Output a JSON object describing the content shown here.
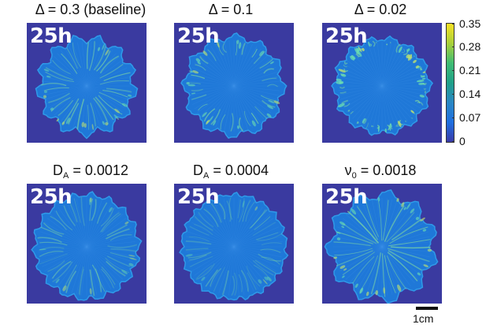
{
  "panels": [
    {
      "title": "Δ = 0.3 (baseline)",
      "time": "25h",
      "variant": "baseline"
    },
    {
      "title": "Δ = 0.1",
      "time": "25h",
      "variant": "mid"
    },
    {
      "title": "Δ = 0.02",
      "time": "25h",
      "variant": "small"
    },
    {
      "title_main": "D",
      "title_sub": "A",
      "title_rest": "= 0.0012",
      "time": "",
      "variant": "da1"
    },
    {
      "title_main": "D",
      "title_sub": "A",
      "title_rest": "= 0.0004",
      "time": "",
      "variant": "da2"
    },
    {
      "title_main": "ν",
      "title_sub": "0",
      "title_rest": "= 0.0018",
      "time": "",
      "variant": "nu"
    }
  ],
  "bottom_time_labels": [
    "25h",
    "25h",
    "25h"
  ],
  "colorbar": {
    "ticks": [
      "0.35",
      "0.28",
      "0.21",
      "0.14",
      "0.07",
      "0"
    ],
    "colors": [
      "#f7e225",
      "#a9d03a",
      "#3fbc73",
      "#1fa088",
      "#2a87c4",
      "#1f6fe0",
      "#3a3aa8"
    ]
  },
  "scalebar": {
    "label": "1cm"
  },
  "colors": {
    "background": "#3a3aa0",
    "colony": "#1f78d8",
    "colony_edge": "#2f9ae8",
    "streak": "#7fd8a0"
  }
}
